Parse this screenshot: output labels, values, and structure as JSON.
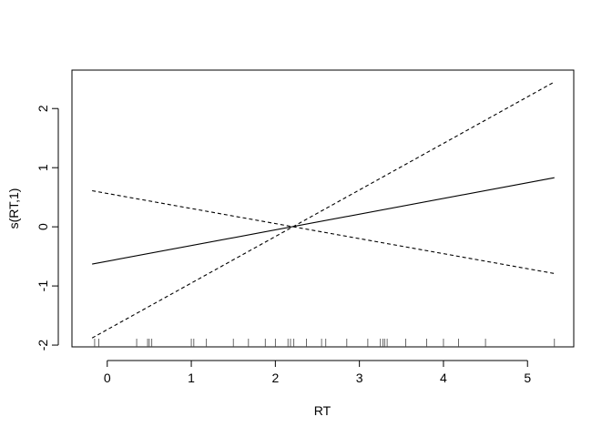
{
  "chart_data": {
    "type": "line",
    "title": "",
    "xlabel": "RT",
    "ylabel": "s(RT,1)",
    "xlim": [
      -0.42,
      5.55
    ],
    "ylim": [
      -2.03,
      2.65
    ],
    "xticks": [
      0,
      1,
      2,
      3,
      4,
      5
    ],
    "yticks": [
      -2,
      -1,
      0,
      1,
      2
    ],
    "xtick_labels": [
      "0",
      "1",
      "2",
      "3",
      "4",
      "5"
    ],
    "ytick_labels": [
      "-2",
      "-1",
      "0",
      "1",
      "2"
    ],
    "grid": false,
    "legend": "none",
    "series": [
      {
        "style": "solid",
        "x": [
          -0.18,
          5.32
        ],
        "y": [
          -0.63,
          0.83
        ]
      },
      {
        "style": "dashed",
        "x": [
          -0.18,
          5.32
        ],
        "y": [
          -1.88,
          2.45
        ]
      },
      {
        "style": "dashed",
        "x": [
          -0.18,
          5.32
        ],
        "y": [
          0.61,
          -0.79
        ]
      }
    ],
    "rug": [
      -0.15,
      -0.1,
      0.35,
      0.48,
      0.5,
      0.53,
      1.0,
      1.03,
      1.18,
      1.5,
      1.68,
      1.88,
      2.0,
      2.15,
      2.18,
      2.22,
      2.37,
      2.55,
      2.6,
      2.85,
      3.1,
      3.25,
      3.28,
      3.3,
      3.33,
      3.55,
      3.8,
      4.0,
      4.18,
      4.5,
      5.32
    ]
  }
}
